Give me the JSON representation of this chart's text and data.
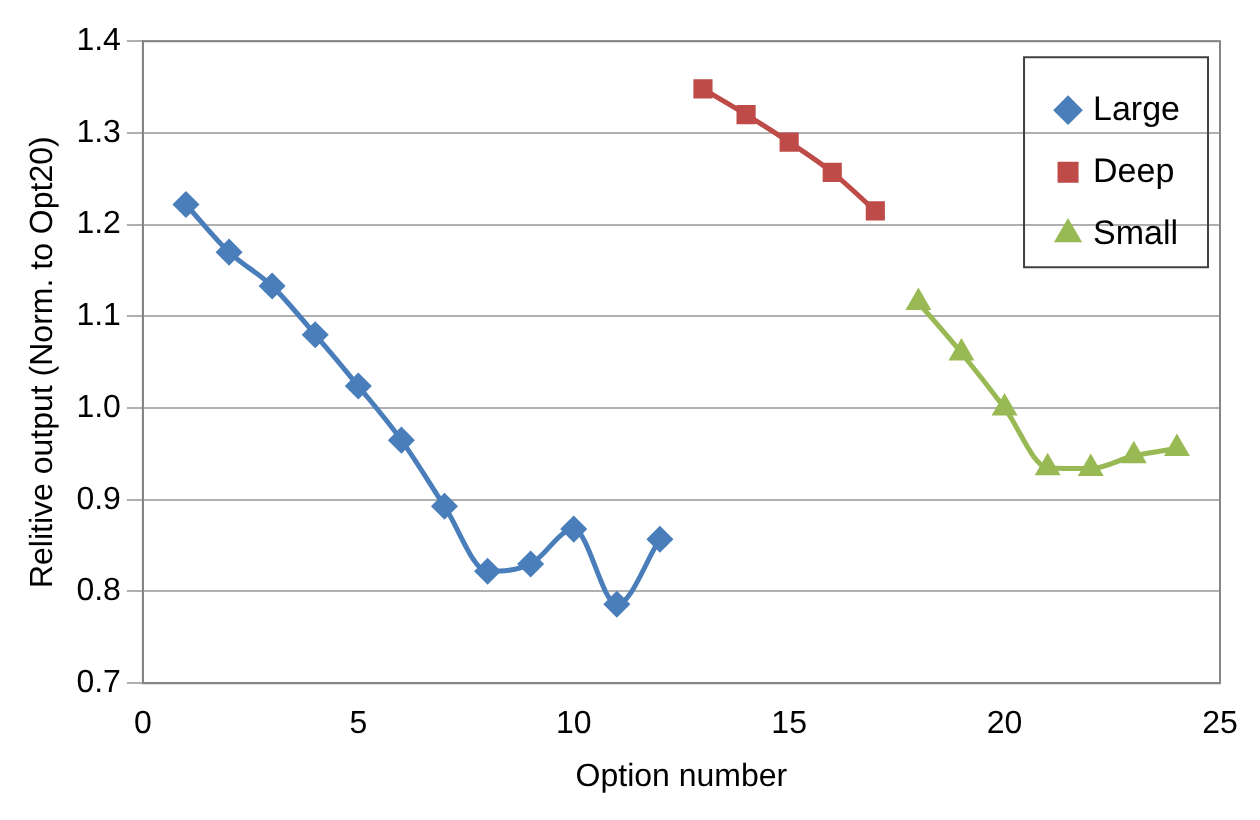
{
  "chart_data": {
    "type": "line",
    "xlabel": "Option number",
    "ylabel": "Relitive output (Norm. to Opt20)",
    "xlim": [
      0,
      25
    ],
    "xticks": [
      0,
      5,
      10,
      15,
      20,
      25
    ],
    "ylim": [
      0.7,
      1.4
    ],
    "yticks": [
      {
        "value": 0.7,
        "label": "0.7"
      },
      {
        "value": 0.8,
        "label": "0.8"
      },
      {
        "value": 0.9,
        "label": "0.9"
      },
      {
        "value": 1.0,
        "label": "1.0"
      },
      {
        "value": 1.1,
        "label": "1.1"
      },
      {
        "value": 1.2,
        "label": "1.2"
      },
      {
        "value": 1.3,
        "label": "1.3"
      },
      {
        "value": 1.4,
        "label": "1.4"
      }
    ],
    "grid": "y",
    "legend": "top right",
    "line_style": "solid",
    "series": [
      {
        "name": "Large",
        "color": "#4a7ebb",
        "marker": "diamond",
        "x": [
          1,
          2,
          3,
          4,
          5,
          6,
          7,
          8,
          9,
          10,
          11,
          12
        ],
        "values": [
          1.222,
          1.17,
          1.133,
          1.08,
          1.024,
          0.965,
          0.893,
          0.822,
          0.83,
          0.868,
          0.786,
          0.857
        ]
      },
      {
        "name": "Deep",
        "color": "#be4b48",
        "marker": "square",
        "x": [
          13,
          14,
          15,
          16,
          17
        ],
        "values": [
          1.348,
          1.32,
          1.29,
          1.257,
          1.215
        ]
      },
      {
        "name": "Small",
        "color": "#98b954",
        "marker": "triangle",
        "x": [
          18,
          19,
          20,
          21,
          22,
          23,
          24
        ],
        "values": [
          1.115,
          1.06,
          1.0,
          0.935,
          0.934,
          0.948,
          0.956
        ]
      }
    ]
  }
}
